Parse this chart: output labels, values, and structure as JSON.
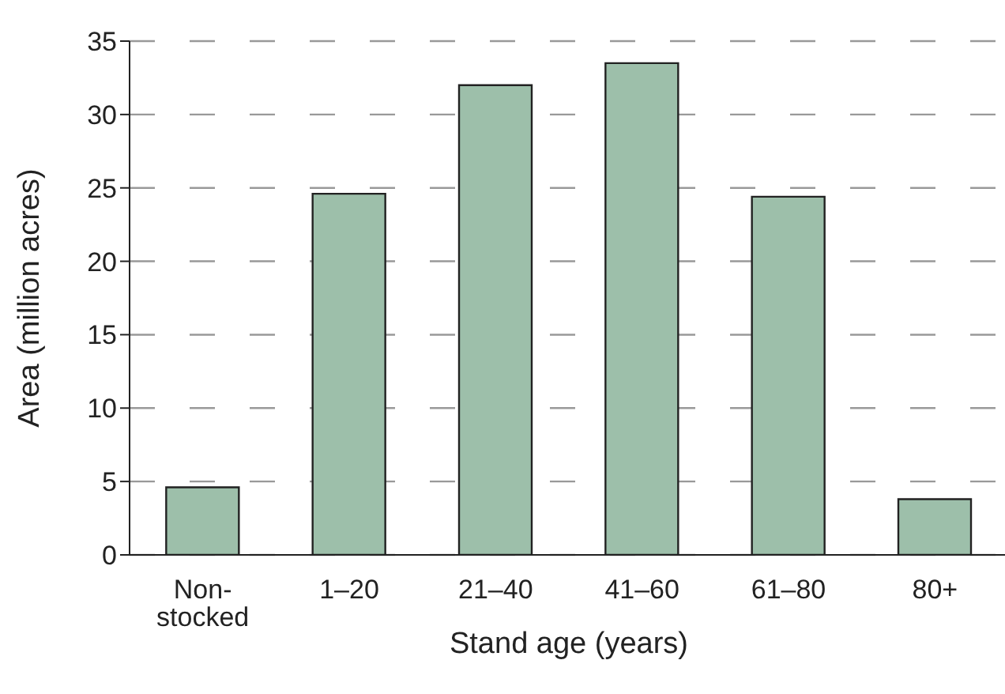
{
  "chart_data": {
    "type": "bar",
    "xlabel": "Stand age (years)",
    "ylabel": "Area (million acres)",
    "categories": [
      "Non-stocked",
      "1–20",
      "21–40",
      "41–60",
      "61–80",
      "80+"
    ],
    "values": [
      4.6,
      24.6,
      32.0,
      33.5,
      24.4,
      3.8
    ],
    "color": "#9dbfaa",
    "ylim": [
      0,
      35
    ],
    "yticks": [
      0,
      5,
      10,
      15,
      20,
      25,
      30,
      35
    ],
    "grid": "y"
  }
}
